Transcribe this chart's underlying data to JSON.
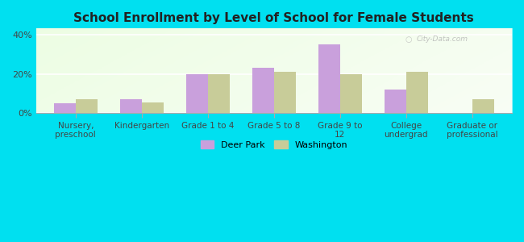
{
  "title": "School Enrollment by Level of School for Female Students",
  "categories": [
    "Nursery,\npreschool",
    "Kindergarten",
    "Grade 1 to 4",
    "Grade 5 to 8",
    "Grade 9 to\n12",
    "College\nundergrad",
    "Graduate or\nprofessional"
  ],
  "deer_park": [
    5.0,
    7.0,
    20.0,
    23.0,
    35.0,
    12.0,
    0.0
  ],
  "washington": [
    7.0,
    5.5,
    20.0,
    21.0,
    20.0,
    21.0,
    7.0
  ],
  "deer_park_color": "#c9a0dc",
  "washington_color": "#c8cc99",
  "background_outer": "#00e0f0",
  "background_inner_color1": "#f5fff5",
  "background_inner_color2": "#d4eec0",
  "yticks": [
    0,
    20,
    40
  ],
  "ylim": [
    0,
    43
  ],
  "bar_width": 0.33,
  "legend_deer_park": "Deer Park",
  "legend_washington": "Washington",
  "watermark": "City-Data.com"
}
